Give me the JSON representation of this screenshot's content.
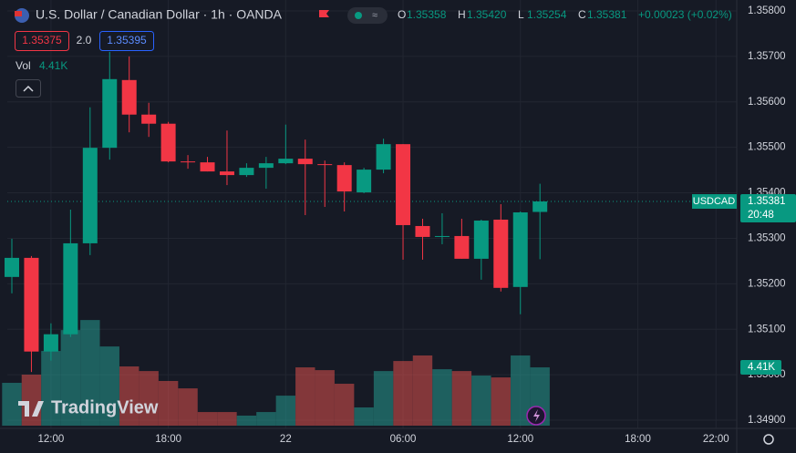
{
  "header": {
    "title": "U.S. Dollar / Canadian Dollar · 1h · OANDA",
    "ohlc": [
      {
        "key": "O",
        "value": "1.35358"
      },
      {
        "key": "H",
        "value": "1.35420"
      },
      {
        "key": "L",
        "value": "1.35254"
      },
      {
        "key": "C",
        "value": "1.35381"
      }
    ],
    "change": "+0.00023 (+0.02%)",
    "sell": "1.35375",
    "spread": "2.0",
    "buy": "1.35395",
    "vol_label": "Vol",
    "vol_value": "4.41K"
  },
  "logo": "TradingView",
  "chart_data": {
    "type": "candlestick",
    "categories": [
      null,
      null,
      "12:00",
      null,
      null,
      null,
      null,
      null,
      "18:00",
      null,
      null,
      null,
      null,
      null,
      "22",
      null,
      null,
      null,
      null,
      null,
      "06:00",
      null,
      null,
      null,
      null,
      null,
      "12:00",
      null
    ],
    "xlim": [
      -0.233,
      37.06
    ],
    "xticks": [
      {
        "value": 2,
        "label": "12:00"
      },
      {
        "value": 8,
        "label": "18:00"
      },
      {
        "value": 14,
        "label": "22"
      },
      {
        "value": 20,
        "label": "06:00"
      },
      {
        "value": 26,
        "label": "12:00"
      },
      {
        "value": 32,
        "label": "18:00"
      },
      {
        "value": 36,
        "label": "22:00"
      }
    ],
    "open": [
      1.35215,
      1.35257,
      1.35051,
      1.35089,
      1.35289,
      1.35499,
      1.35648,
      1.35572,
      1.35552,
      1.35469,
      1.35467,
      1.35447,
      1.35439,
      1.35455,
      1.35465,
      1.35475,
      1.35463,
      1.35461,
      1.35401,
      1.35451,
      1.35507,
      1.35327,
      1.35305,
      1.35305,
      1.35255,
      1.35341,
      1.35193,
      1.35358
    ],
    "high": [
      1.35299,
      1.35261,
      1.35113,
      1.35363,
      1.35588,
      1.3571,
      1.357,
      1.35598,
      1.35556,
      1.35483,
      1.35479,
      1.35537,
      1.35465,
      1.35479,
      1.3555,
      1.35517,
      1.35471,
      1.35467,
      1.35455,
      1.35519,
      1.35507,
      1.35343,
      1.35355,
      1.35343,
      1.35341,
      1.35375,
      1.35359,
      1.3542
    ],
    "low": [
      1.35179,
      1.35006,
      1.35031,
      1.35083,
      1.35263,
      1.35473,
      1.35533,
      1.35523,
      1.35467,
      1.35453,
      1.35447,
      1.35417,
      1.35435,
      1.35409,
      1.35463,
      1.35351,
      1.35369,
      1.35359,
      1.35399,
      1.35443,
      1.35253,
      1.35253,
      1.35287,
      1.35255,
      1.35209,
      1.35183,
      1.35133,
      1.35254
    ],
    "close": [
      1.35257,
      1.35051,
      1.35089,
      1.35289,
      1.35499,
      1.3565,
      1.35572,
      1.35552,
      1.35469,
      1.35467,
      1.35447,
      1.35439,
      1.35455,
      1.35465,
      1.35475,
      1.35463,
      1.35461,
      1.35403,
      1.35451,
      1.35507,
      1.35329,
      1.35303,
      1.35305,
      1.35255,
      1.35339,
      1.35191,
      1.35357,
      1.35381
    ],
    "volume": [
      3240,
      3860,
      5650,
      7230,
      7990,
      5990,
      4480,
      4130,
      3380,
      2820,
      1030,
      1030,
      760,
      1030,
      2270,
      4410,
      4200,
      3170,
      1380,
      4130,
      4890,
      5310,
      4270,
      4130,
      3790,
      3650,
      5310,
      4410
    ],
    "up_color": "#089981",
    "down_color": "#f23645",
    "ylim": [
      1.34882,
      1.35824
    ],
    "vlim": [
      0,
      32200
    ],
    "yticks": [
      {
        "value": 1.358,
        "label": "1.35800"
      },
      {
        "value": 1.357,
        "label": "1.35700"
      },
      {
        "value": 1.356,
        "label": "1.35600"
      },
      {
        "value": 1.355,
        "label": "1.35500"
      },
      {
        "value": 1.354,
        "label": "1.35400"
      },
      {
        "value": 1.353,
        "label": "1.35300"
      },
      {
        "value": 1.352,
        "label": "1.35200"
      },
      {
        "value": 1.351,
        "label": "1.35100"
      },
      {
        "value": 1.35,
        "label": "1.35000"
      },
      {
        "value": 1.349,
        "label": "1.34900"
      }
    ],
    "price_tag": {
      "symbol": "USDCAD",
      "price": "1.35381",
      "countdown": "20:48"
    },
    "volume_tag": "4.41K"
  }
}
